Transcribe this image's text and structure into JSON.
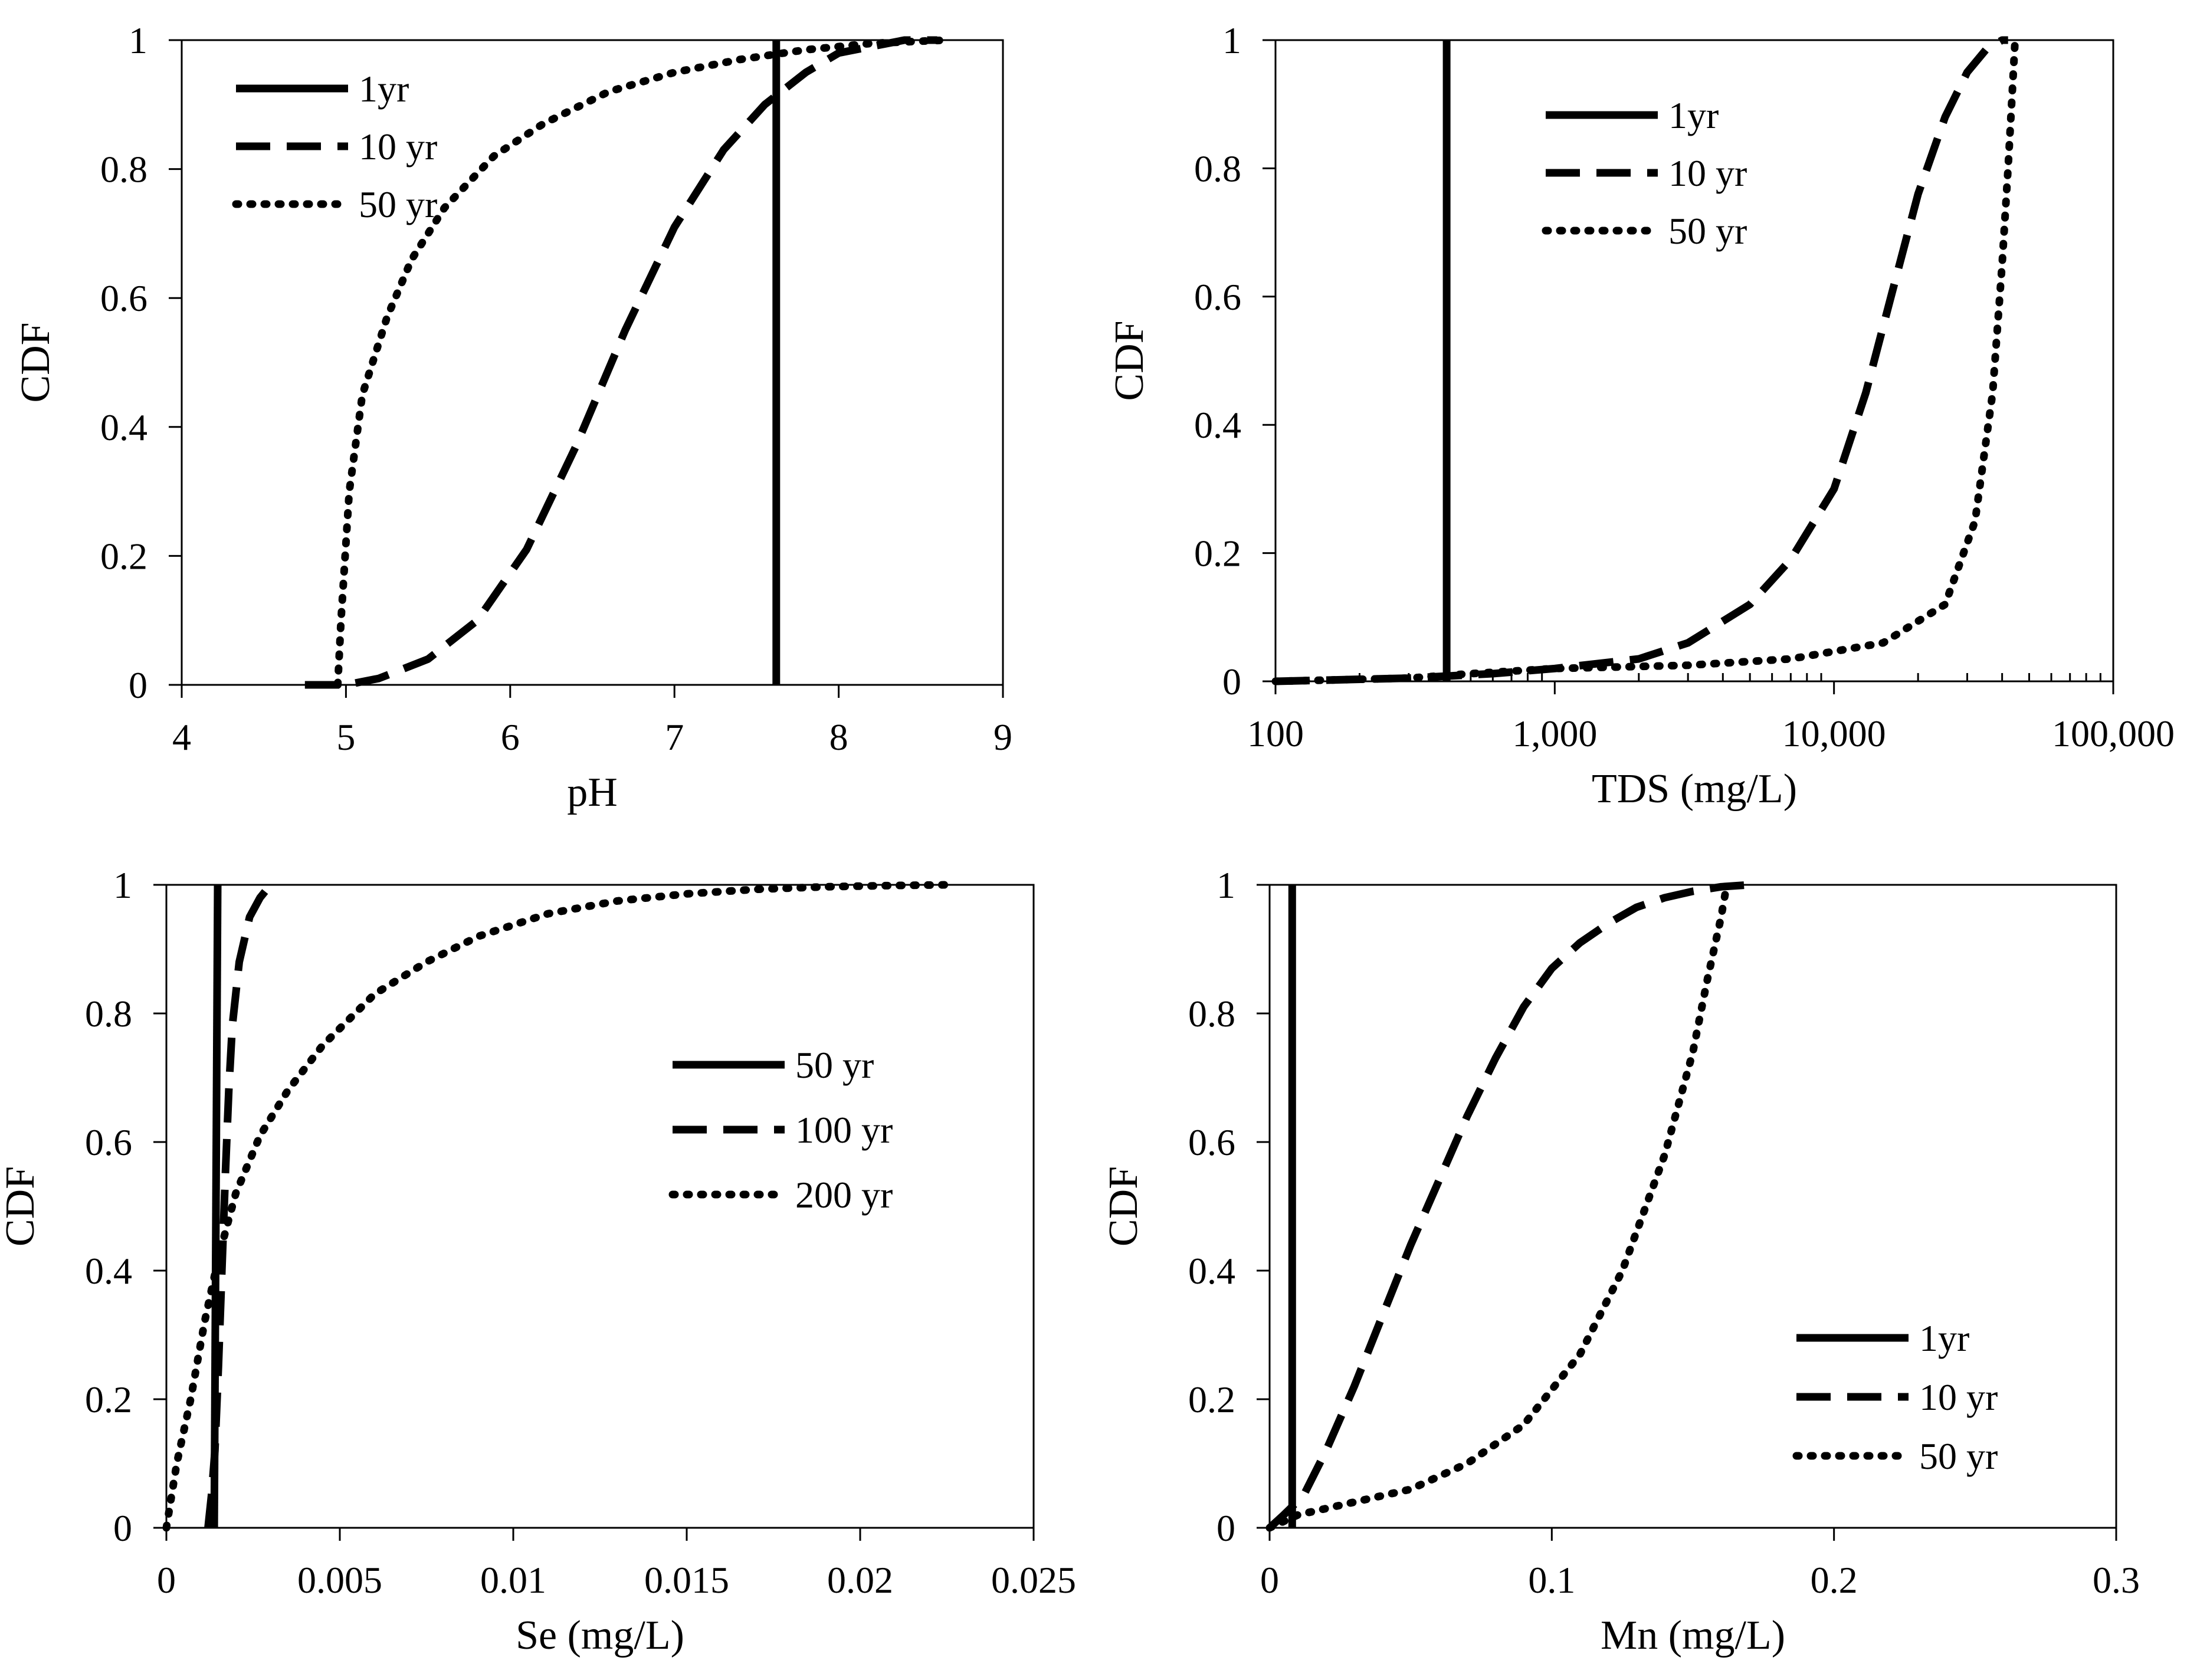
{
  "colors": {
    "ink": "#000000",
    "background": "#ffffff"
  },
  "chart_data": [
    {
      "id": "ph",
      "type": "line",
      "xlabel": "pH",
      "ylabel": "CDF",
      "xscale": "linear",
      "xlim": [
        4,
        9
      ],
      "ylim": [
        0,
        1
      ],
      "xticks": [
        4,
        5,
        6,
        7,
        8,
        9
      ],
      "xtick_labels": [
        "4",
        "5",
        "6",
        "7",
        "8",
        "9"
      ],
      "yticks": [
        0,
        0.2,
        0.4,
        0.6,
        0.8,
        1
      ],
      "ytick_labels": [
        "0",
        "0.2",
        "0.4",
        "0.6",
        "0.8",
        "1"
      ],
      "legend_position": "top-left",
      "series": [
        {
          "name": "1yr",
          "style": "solid",
          "x": [
            7.62,
            7.62
          ],
          "y": [
            0,
            1
          ]
        },
        {
          "name": "10 yr",
          "style": "dashed",
          "x": [
            4.75,
            5.0,
            5.2,
            5.5,
            5.8,
            6.1,
            6.4,
            6.7,
            7.0,
            7.3,
            7.55,
            7.8,
            8.0,
            8.2,
            8.4,
            8.6
          ],
          "y": [
            0,
            0,
            0.01,
            0.04,
            0.1,
            0.21,
            0.37,
            0.55,
            0.71,
            0.83,
            0.9,
            0.95,
            0.98,
            0.99,
            1.0,
            1.0
          ]
        },
        {
          "name": "50 yr",
          "style": "dotted",
          "x": [
            4.95,
            4.97,
            5.02,
            5.1,
            5.25,
            5.4,
            5.6,
            5.9,
            6.2,
            6.6,
            7.0,
            7.4,
            7.8,
            8.2,
            8.65
          ],
          "y": [
            0,
            0.1,
            0.3,
            0.45,
            0.57,
            0.66,
            0.74,
            0.82,
            0.87,
            0.92,
            0.95,
            0.97,
            0.985,
            0.995,
            1.0
          ]
        }
      ]
    },
    {
      "id": "tds",
      "type": "line",
      "xlabel": "TDS (mg/L)",
      "ylabel": "CDF",
      "xscale": "log",
      "xlim": [
        100,
        100000
      ],
      "ylim": [
        0,
        1
      ],
      "xticks": [
        100,
        1000,
        10000,
        100000
      ],
      "xtick_labels": [
        "100",
        "1,000",
        "10,000",
        "100,000"
      ],
      "yticks": [
        0,
        0.2,
        0.4,
        0.6,
        0.8,
        1
      ],
      "ytick_labels": [
        "0",
        "0.2",
        "0.4",
        "0.6",
        "0.8",
        "1"
      ],
      "legend_position": "top-center",
      "series": [
        {
          "name": "1yr",
          "style": "solid",
          "x": [
            410,
            410
          ],
          "y": [
            0,
            1
          ]
        },
        {
          "name": "10 yr",
          "style": "dashed",
          "x": [
            100,
            300,
            600,
            1000,
            2000,
            3000,
            5000,
            7000,
            10000,
            13000,
            16000,
            20000,
            25000,
            30000,
            35000,
            40000,
            42000
          ],
          "y": [
            0,
            0.005,
            0.012,
            0.02,
            0.035,
            0.06,
            0.12,
            0.19,
            0.3,
            0.45,
            0.6,
            0.76,
            0.88,
            0.95,
            0.985,
            1.0,
            1.0
          ]
        },
        {
          "name": "50 yr",
          "style": "dotted",
          "x": [
            100,
            300,
            500,
            1000,
            3000,
            7000,
            15000,
            25000,
            32000,
            37000,
            40000,
            42000,
            43500,
            44500
          ],
          "y": [
            0,
            0.005,
            0.012,
            0.02,
            0.025,
            0.035,
            0.06,
            0.12,
            0.25,
            0.45,
            0.65,
            0.8,
            0.92,
            1.0
          ]
        }
      ]
    },
    {
      "id": "se",
      "type": "line",
      "xlabel": "Se (mg/L)",
      "ylabel": "CDF",
      "xscale": "linear",
      "xlim": [
        0,
        0.025
      ],
      "ylim": [
        0,
        1
      ],
      "xticks": [
        0,
        0.005,
        0.01,
        0.015,
        0.02,
        0.025
      ],
      "xtick_labels": [
        "0",
        "0.005",
        "0.01",
        "0.015",
        "0.02",
        "0.025"
      ],
      "yticks": [
        0,
        0.2,
        0.4,
        0.6,
        0.8,
        1
      ],
      "ytick_labels": [
        "0",
        "0.2",
        "0.4",
        "0.6",
        "0.8",
        "1"
      ],
      "legend_position": "center-right",
      "series": [
        {
          "name": "50 yr",
          "style": "solid",
          "x": [
            0.00138,
            0.00148
          ],
          "y": [
            0,
            1
          ]
        },
        {
          "name": "100 yr",
          "style": "dashed",
          "x": [
            0.0012,
            0.0013,
            0.0014,
            0.0015,
            0.0016,
            0.0017,
            0.0018,
            0.0019,
            0.0021,
            0.0024,
            0.0027,
            0.003
          ],
          "y": [
            0,
            0.05,
            0.12,
            0.25,
            0.4,
            0.55,
            0.68,
            0.78,
            0.88,
            0.95,
            0.98,
            1.0
          ]
        },
        {
          "name": "200 yr",
          "style": "dotted",
          "x": [
            0,
            0.0003,
            0.0007,
            0.0011,
            0.0015,
            0.002,
            0.0027,
            0.0035,
            0.0045,
            0.006,
            0.0075,
            0.009,
            0.011,
            0.013,
            0.015,
            0.017,
            0.019,
            0.021,
            0.0225
          ],
          "y": [
            0,
            0.1,
            0.2,
            0.32,
            0.42,
            0.52,
            0.61,
            0.68,
            0.75,
            0.83,
            0.88,
            0.92,
            0.955,
            0.975,
            0.986,
            0.993,
            0.997,
            0.999,
            1.0
          ]
        }
      ]
    },
    {
      "id": "mn",
      "type": "line",
      "xlabel": "Mn (mg/L)",
      "ylabel": "CDF",
      "xscale": "linear",
      "xlim": [
        0,
        0.3
      ],
      "ylim": [
        0,
        1
      ],
      "xticks": [
        0,
        0.1,
        0.2,
        0.3
      ],
      "xtick_labels": [
        "0",
        "0.1",
        "0.2",
        "0.3"
      ],
      "yticks": [
        0,
        0.2,
        0.4,
        0.6,
        0.8,
        1
      ],
      "ytick_labels": [
        "0",
        "0.2",
        "0.4",
        "0.6",
        "0.8",
        "1"
      ],
      "legend_position": "bottom-right",
      "series": [
        {
          "name": "1yr",
          "style": "solid",
          "x": [
            0.008,
            0.008
          ],
          "y": [
            0,
            1
          ]
        },
        {
          "name": "10 yr",
          "style": "dashed",
          "x": [
            0,
            0.005,
            0.012,
            0.02,
            0.03,
            0.04,
            0.05,
            0.06,
            0.07,
            0.08,
            0.09,
            0.1,
            0.11,
            0.12,
            0.13,
            0.14,
            0.15,
            0.16,
            0.17
          ],
          "y": [
            0,
            0.02,
            0.05,
            0.12,
            0.22,
            0.33,
            0.44,
            0.54,
            0.64,
            0.73,
            0.81,
            0.87,
            0.91,
            0.94,
            0.965,
            0.98,
            0.99,
            0.997,
            1.0
          ]
        },
        {
          "name": "50 yr",
          "style": "dotted",
          "x": [
            0,
            0.01,
            0.03,
            0.05,
            0.07,
            0.09,
            0.11,
            0.125,
            0.14,
            0.15,
            0.155,
            0.16,
            0.162
          ],
          "y": [
            0,
            0.02,
            0.04,
            0.06,
            0.1,
            0.16,
            0.27,
            0.4,
            0.58,
            0.74,
            0.85,
            0.95,
            1.0
          ]
        }
      ]
    }
  ]
}
